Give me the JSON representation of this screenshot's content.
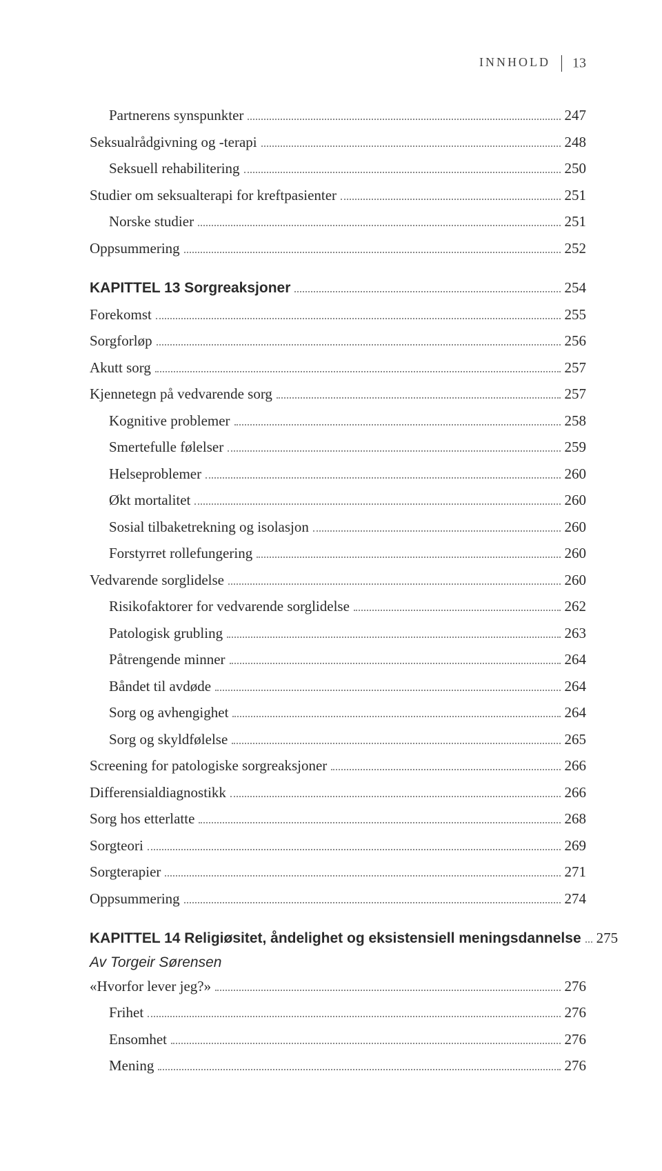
{
  "header": {
    "label": "INNHOLD",
    "page_number": "13"
  },
  "entries": [
    {
      "label": "Partnerens synspunkter",
      "page": "247",
      "indent": 1,
      "gap": false
    },
    {
      "label": "Seksualrådgivning og -terapi",
      "page": "248",
      "indent": 0
    },
    {
      "label": "Seksuell rehabilitering",
      "page": "250",
      "indent": 1
    },
    {
      "label": "Studier om seksualterapi for kreftpasienter",
      "page": "251",
      "indent": 0
    },
    {
      "label": "Norske studier",
      "page": "251",
      "indent": 1
    },
    {
      "label": "Oppsummering",
      "page": "252",
      "indent": 0
    },
    {
      "label": "KAPITTEL 13 Sorgreaksjoner",
      "page": "254",
      "indent": 0,
      "style": "chapter",
      "gap": true
    },
    {
      "label": "Forekomst",
      "page": "255",
      "indent": 0
    },
    {
      "label": "Sorgforløp",
      "page": "256",
      "indent": 0
    },
    {
      "label": "Akutt sorg",
      "page": "257",
      "indent": 0
    },
    {
      "label": "Kjennetegn på vedvarende sorg",
      "page": "257",
      "indent": 0
    },
    {
      "label": "Kognitive problemer",
      "page": "258",
      "indent": 1
    },
    {
      "label": "Smertefulle følelser",
      "page": "259",
      "indent": 1
    },
    {
      "label": "Helseproblemer",
      "page": "260",
      "indent": 1
    },
    {
      "label": "Økt mortalitet",
      "page": "260",
      "indent": 1
    },
    {
      "label": "Sosial tilbaketrekning og isolasjon",
      "page": "260",
      "indent": 1
    },
    {
      "label": "Forstyrret rollefungering",
      "page": "260",
      "indent": 1
    },
    {
      "label": "Vedvarende sorglidelse",
      "page": "260",
      "indent": 0
    },
    {
      "label": "Risikofaktorer for vedvarende sorglidelse",
      "page": "262",
      "indent": 1
    },
    {
      "label": "Patologisk grubling",
      "page": "263",
      "indent": 1
    },
    {
      "label": "Påtrengende minner",
      "page": "264",
      "indent": 1
    },
    {
      "label": "Båndet til avdøde",
      "page": "264",
      "indent": 1
    },
    {
      "label": "Sorg og avhengighet",
      "page": "264",
      "indent": 1
    },
    {
      "label": "Sorg og skyldfølelse",
      "page": "265",
      "indent": 1
    },
    {
      "label": "Screening for patologiske sorgreaksjoner",
      "page": "266",
      "indent": 0
    },
    {
      "label": "Differensialdiagnostikk",
      "page": "266",
      "indent": 0
    },
    {
      "label": "Sorg hos etterlatte",
      "page": "268",
      "indent": 0
    },
    {
      "label": "Sorgteori",
      "page": "269",
      "indent": 0
    },
    {
      "label": "Sorgterapier",
      "page": "271",
      "indent": 0
    },
    {
      "label": "Oppsummering",
      "page": "274",
      "indent": 0
    },
    {
      "label": "KAPITTEL 14 Religiøsitet, åndelighet og eksistensiell meningsdannelse",
      "page": "275",
      "indent": 0,
      "style": "chapter",
      "gap": true
    },
    {
      "label": "Av Torgeir Sørensen",
      "style": "author",
      "indent": 0
    },
    {
      "label": "«Hvorfor lever jeg?»",
      "page": "276",
      "indent": 0
    },
    {
      "label": "Frihet",
      "page": "276",
      "indent": 1
    },
    {
      "label": "Ensomhet",
      "page": "276",
      "indent": 1
    },
    {
      "label": "Mening",
      "page": "276",
      "indent": 1
    }
  ]
}
